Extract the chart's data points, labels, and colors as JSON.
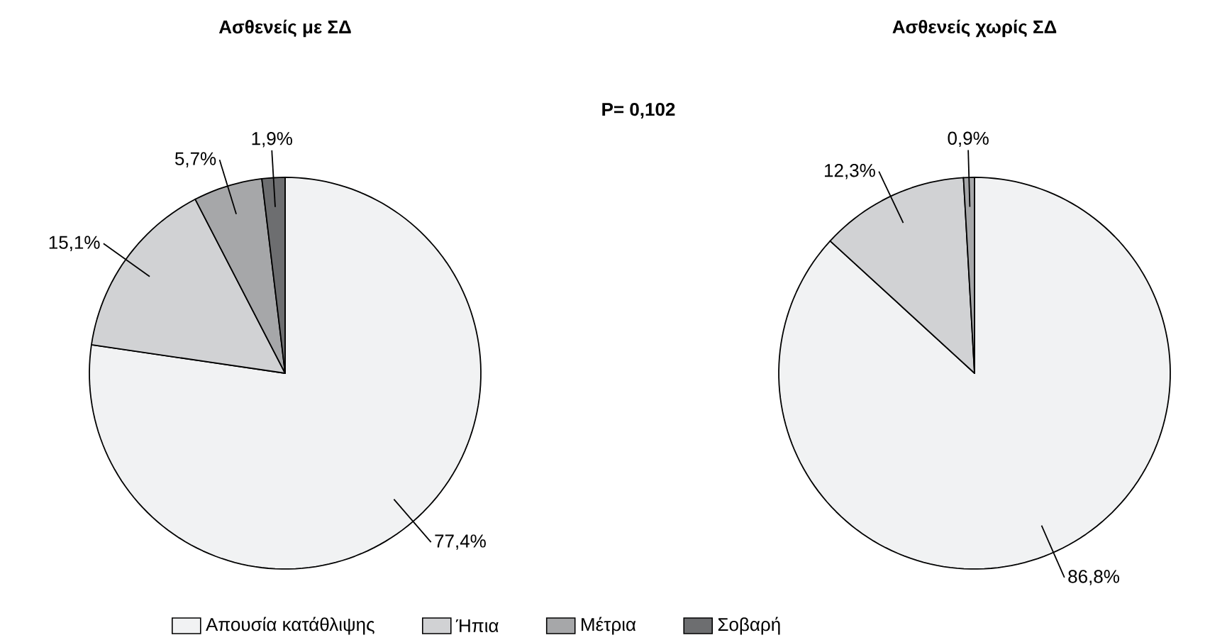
{
  "chart_data": [
    {
      "type": "pie",
      "title": "Ασθενείς με ΣΔ",
      "categories": [
        "Απουσία κατάθλιψης",
        "Ήπια",
        "Μέτρια",
        "Σοβαρή"
      ],
      "values": [
        77.4,
        15.1,
        5.7,
        1.9
      ],
      "colors": [
        "#f1f2f3",
        "#d1d2d4",
        "#a6a7a9",
        "#6d6e70"
      ],
      "value_labels": [
        "77,4%",
        "15,1%",
        "5,7%",
        "1,9%"
      ],
      "legend": "bottom",
      "annotations": [
        "P= 0,102"
      ]
    },
    {
      "type": "pie",
      "title": "Ασθενείς χωρίς ΣΔ",
      "categories": [
        null,
        null,
        null
      ],
      "values": [
        86.8,
        12.3,
        0.9
      ],
      "colors": [
        "#f1f2f3",
        "#d1d2d4",
        "#a6a7a9"
      ],
      "value_labels": [
        "86,8%",
        "12,3%",
        "0,9%"
      ]
    }
  ]
}
